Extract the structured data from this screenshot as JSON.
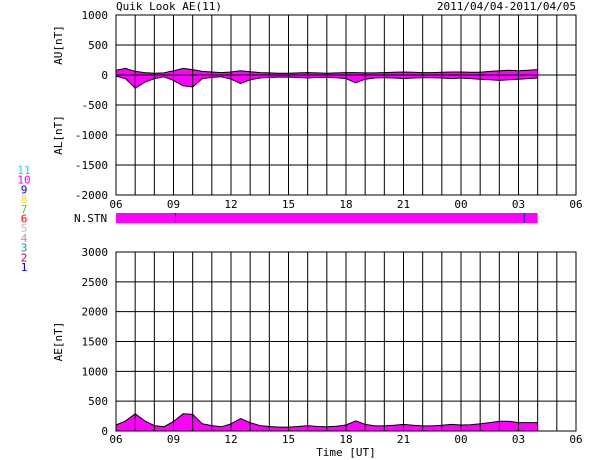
{
  "header": {
    "title": "Quik Look AE(11)",
    "date_range": "2011/04/04-2011/04/05"
  },
  "chart_data": [
    {
      "type": "area",
      "panel": "AU/AL",
      "ylabel_upper": "AU[nT]",
      "ylabel_lower": "AL[nT]",
      "ylim": [
        -2000,
        1000
      ],
      "yticks": [
        "1000",
        "500",
        "0",
        "-500",
        "-1000",
        "-1500",
        "-2000"
      ],
      "xticks": [
        "06",
        "09",
        "12",
        "15",
        "18",
        "21",
        "00",
        "03",
        "06"
      ],
      "xlabel": "",
      "x_hours": [
        0,
        0.5,
        1,
        1.5,
        2,
        2.5,
        3,
        3.5,
        4,
        4.5,
        5,
        5.5,
        6,
        6.5,
        7,
        7.5,
        8,
        8.5,
        9,
        9.5,
        10,
        10.5,
        11,
        11.5,
        12,
        12.5,
        13,
        13.5,
        14,
        14.5,
        15,
        15.5,
        16,
        16.5,
        17,
        17.5,
        18,
        18.5,
        19,
        19.5,
        20,
        20.5,
        21,
        21.5,
        22
      ],
      "au_values": [
        80,
        110,
        60,
        40,
        30,
        35,
        70,
        110,
        90,
        60,
        50,
        40,
        50,
        70,
        55,
        40,
        35,
        30,
        30,
        35,
        40,
        35,
        30,
        35,
        40,
        40,
        35,
        35,
        40,
        45,
        50,
        45,
        40,
        40,
        45,
        50,
        50,
        45,
        45,
        60,
        70,
        80,
        70,
        80,
        90
      ],
      "al_values": [
        -20,
        -60,
        -220,
        -120,
        -60,
        -30,
        -90,
        -180,
        -200,
        -60,
        -40,
        -30,
        -70,
        -140,
        -80,
        -50,
        -40,
        -35,
        -35,
        -40,
        -50,
        -40,
        -40,
        -45,
        -60,
        -130,
        -70,
        -50,
        -45,
        -50,
        -60,
        -50,
        -45,
        -45,
        -50,
        -60,
        -50,
        -60,
        -70,
        -80,
        -90,
        -80,
        -70,
        -60,
        -50
      ],
      "series_colors": {
        "fill": "#ff00ff",
        "line": "#000000"
      }
    },
    {
      "type": "bar",
      "panel": "N.STN",
      "label": "N.STN",
      "color": "#ff00ff",
      "start_hour": 0,
      "end_hour": 22,
      "marks_hours": [
        3.1,
        21.3
      ]
    },
    {
      "type": "area",
      "panel": "AE",
      "ylabel": "AE[nT]",
      "xlabel": "Time [UT]",
      "ylim": [
        0,
        3000
      ],
      "yticks": [
        "3000",
        "2500",
        "2000",
        "1500",
        "1000",
        "500",
        "0"
      ],
      "xticks": [
        "06",
        "09",
        "12",
        "15",
        "18",
        "21",
        "00",
        "03",
        "06"
      ],
      "x_hours": [
        0,
        0.5,
        1,
        1.5,
        2,
        2.5,
        3,
        3.5,
        4,
        4.5,
        5,
        5.5,
        6,
        6.5,
        7,
        7.5,
        8,
        8.5,
        9,
        9.5,
        10,
        10.5,
        11,
        11.5,
        12,
        12.5,
        13,
        13.5,
        14,
        14.5,
        15,
        15.5,
        16,
        16.5,
        17,
        17.5,
        18,
        18.5,
        19,
        19.5,
        20,
        20.5,
        21,
        21.5,
        22
      ],
      "ae_values": [
        100,
        170,
        290,
        170,
        90,
        70,
        160,
        290,
        280,
        120,
        90,
        70,
        120,
        210,
        140,
        90,
        75,
        65,
        65,
        75,
        90,
        75,
        70,
        80,
        100,
        170,
        110,
        85,
        85,
        95,
        110,
        95,
        85,
        85,
        95,
        110,
        100,
        105,
        120,
        140,
        165,
        165,
        140,
        140,
        140
      ],
      "series_colors": {
        "fill": "#ff00ff",
        "line": "#000000"
      }
    }
  ],
  "legend": {
    "items": [
      {
        "label": "11",
        "color": "#00e5e5"
      },
      {
        "label": "10",
        "color": "#ff00ff"
      },
      {
        "label": "9",
        "color": "#0000cc"
      },
      {
        "label": "8",
        "color": "#ffe000"
      },
      {
        "label": "7",
        "color": "#40d040"
      },
      {
        "label": "6",
        "color": "#ff0000"
      },
      {
        "label": "5",
        "color": "#c0c0c0"
      },
      {
        "label": "4",
        "color": "#a0a0a0"
      },
      {
        "label": "3",
        "color": "#00a0a0"
      },
      {
        "label": "2",
        "color": "#b00060"
      },
      {
        "label": "1",
        "color": "#0000cc"
      }
    ]
  }
}
